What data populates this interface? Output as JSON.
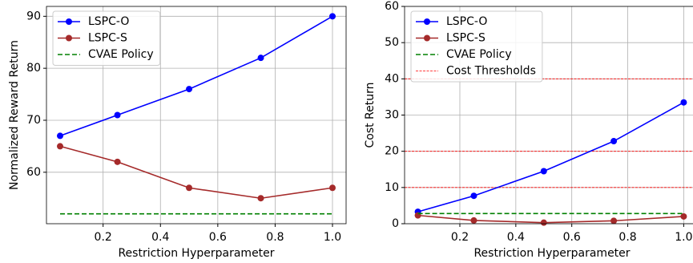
{
  "chart_data": [
    {
      "type": "line",
      "x": [
        0.05,
        0.25,
        0.5,
        0.75,
        1.0
      ],
      "series": [
        {
          "name": "LSPC-O",
          "color": "#0000ff",
          "marker": "o",
          "linestyle": "solid",
          "values": [
            67,
            71,
            76,
            82,
            90
          ]
        },
        {
          "name": "LSPC-S",
          "color": "#a52a2a",
          "marker": "o",
          "linestyle": "solid",
          "values": [
            65,
            62,
            57,
            55,
            57
          ]
        },
        {
          "name": "CVAE Policy",
          "color": "#008000",
          "linestyle": "dashed",
          "values": [
            52,
            52,
            52,
            52,
            52
          ]
        }
      ],
      "xlabel": "Restriction Hyperparameter",
      "ylabel": "Normalized Reward Return",
      "xlim": [
        0.0025,
        1.0475
      ],
      "ylim": [
        50.1,
        91.9
      ],
      "xticks": [
        0.2,
        0.4,
        0.6,
        0.8,
        {
          "value": 1,
          "label": "1.0"
        }
      ],
      "yticks": [
        60,
        70,
        80,
        90
      ],
      "grid": true,
      "legend": "upper left"
    },
    {
      "type": "line",
      "x": [
        0.05,
        0.25,
        0.5,
        0.75,
        1.0
      ],
      "series": [
        {
          "name": "LSPC-O",
          "color": "#0000ff",
          "marker": "o",
          "linestyle": "solid",
          "values": [
            3.3,
            7.7,
            14.5,
            22.8,
            33.5
          ]
        },
        {
          "name": "LSPC-S",
          "color": "#a52a2a",
          "marker": "o",
          "linestyle": "solid",
          "values": [
            2.3,
            0.9,
            0.3,
            0.8,
            2.0
          ]
        },
        {
          "name": "CVAE Policy",
          "color": "#008000",
          "linestyle": "dashed",
          "values": [
            2.8,
            2.8,
            2.8,
            2.8,
            2.8
          ]
        }
      ],
      "thresholds": {
        "name": "Cost Thresholds",
        "color": "#ff0000",
        "values": [
          10,
          20,
          40
        ]
      },
      "xlabel": "Restriction Hyperparameter",
      "ylabel": "Cost Return",
      "xlim": [
        0.0025,
        1.0475
      ],
      "ylim": [
        0,
        60
      ],
      "xticks": [
        0.2,
        0.4,
        0.6,
        0.8,
        {
          "value": 1,
          "label": "1.0"
        }
      ],
      "yticks": [
        0,
        10,
        20,
        30,
        40,
        50,
        60
      ],
      "grid": true,
      "legend": "upper left"
    }
  ]
}
